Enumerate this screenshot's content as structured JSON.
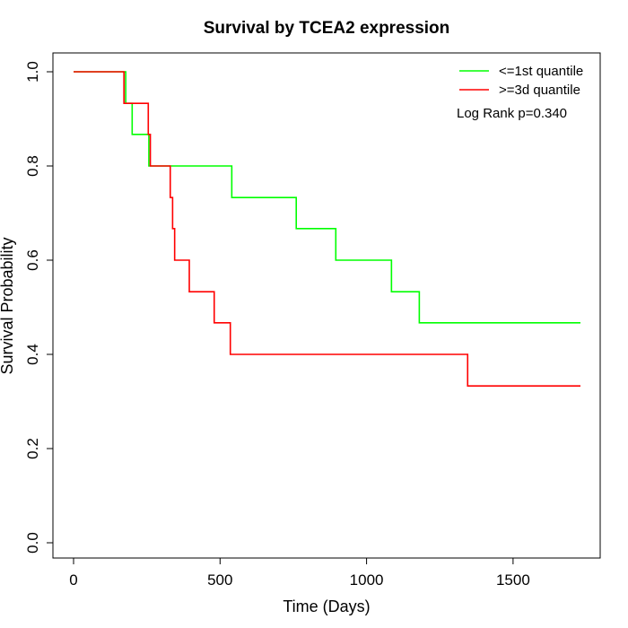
{
  "chart_data": {
    "type": "line",
    "step": true,
    "title": "Survival by TCEA2 expression",
    "xlabel": "Time (Days)",
    "ylabel": "Survival Probability",
    "xlim": [
      0,
      1730
    ],
    "ylim": [
      0,
      1
    ],
    "xticks": [
      "0",
      "500",
      "1000",
      "1500"
    ],
    "xtick_values": [
      0,
      500,
      1000,
      1500
    ],
    "yticks": [
      "0.0",
      "0.2",
      "0.4",
      "0.6",
      "0.8",
      "1.0"
    ],
    "ytick_values": [
      0.0,
      0.2,
      0.4,
      0.6,
      0.8,
      1.0
    ],
    "grid": false,
    "legend_position": "top-right",
    "annotation": "Log Rank p=0.340",
    "series": [
      {
        "name": "<=1st quantile",
        "color": "#00ff00",
        "x": [
          0,
          178,
          200,
          257,
          540,
          760,
          895,
          1085,
          1180,
          1730
        ],
        "y": [
          1.0,
          0.933,
          0.867,
          0.8,
          0.733,
          0.667,
          0.6,
          0.533,
          0.467,
          0.467
        ]
      },
      {
        "name": ">=3d quantile",
        "color": "#ff0000",
        "x": [
          0,
          172,
          255,
          262,
          330,
          338,
          345,
          350,
          395,
          480,
          535,
          1345,
          1730
        ],
        "y": [
          1.0,
          0.933,
          0.867,
          0.8,
          0.733,
          0.667,
          0.6,
          0.6,
          0.533,
          0.467,
          0.4,
          0.333,
          0.333
        ]
      }
    ]
  }
}
